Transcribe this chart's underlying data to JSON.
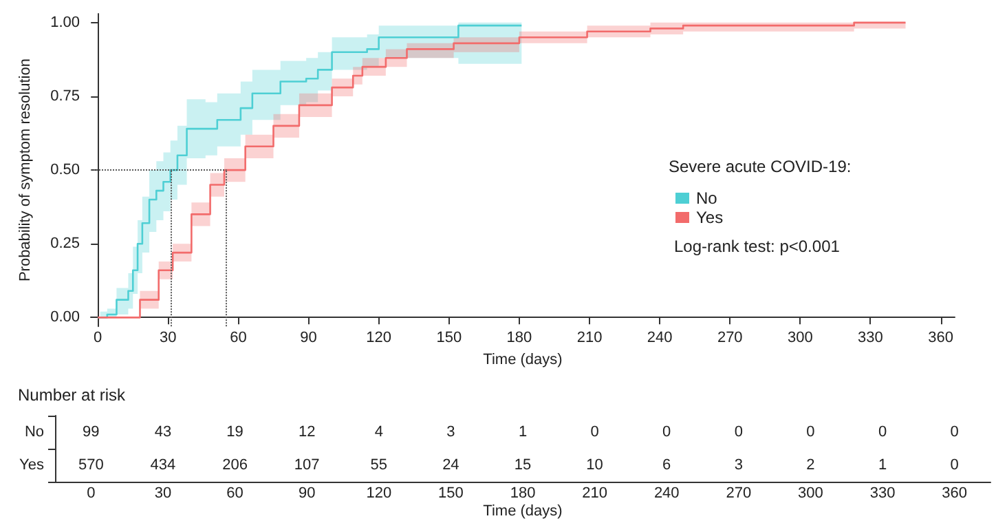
{
  "chart_data": [
    {
      "type": "step",
      "xlabel": "Time (days)",
      "ylabel": "Probability of symptom resolution",
      "legend_title": "Severe acute COVID-19:",
      "legend": "right",
      "grid": false,
      "marker": "none",
      "line_style": "solid",
      "xlim": [
        -3,
        366
      ],
      "xticks": [
        0,
        30,
        60,
        90,
        120,
        150,
        180,
        210,
        240,
        270,
        300,
        330,
        360
      ],
      "ylim": [
        -0.03,
        1.03
      ],
      "yticks": [
        {
          "value": 0,
          "label": "0.00"
        },
        {
          "value": 0.25,
          "label": "0.25"
        },
        {
          "value": 0.5,
          "label": "0.50"
        },
        {
          "value": 0.75,
          "label": "0.75"
        },
        {
          "value": 1,
          "label": "1.00"
        }
      ],
      "annotations": [
        "Log-rank test: p<0.001"
      ],
      "ref_lines": [
        {
          "axis": "y",
          "value": 0.5,
          "line_style": "dotted",
          "color": "#555555"
        },
        {
          "axis": "x",
          "value": 31,
          "line_style": "dotted",
          "color": "#555555"
        },
        {
          "axis": "x",
          "value": 55,
          "line_style": "dotted",
          "color": "#555555"
        }
      ],
      "series": [
        {
          "name": "No",
          "color": "#4ecfd4",
          "x": [
            0,
            1,
            4,
            8,
            13,
            15,
            17,
            19,
            22,
            25,
            28,
            31,
            34,
            38,
            46,
            51,
            61,
            66,
            78,
            89,
            94,
            100,
            115,
            120,
            154,
            181
          ],
          "values": [
            0,
            0,
            0.01,
            0.06,
            0.09,
            0.16,
            0.25,
            0.32,
            0.4,
            0.43,
            0.46,
            0.5,
            0.55,
            0.64,
            0.64,
            0.67,
            0.71,
            0.76,
            0.8,
            0.81,
            0.84,
            0.9,
            0.91,
            0.95,
            0.99,
            0.99
          ],
          "lower": [
            0,
            0,
            0,
            0.01,
            0.03,
            0.08,
            0.15,
            0.22,
            0.29,
            0.33,
            0.36,
            0.4,
            0.45,
            0.54,
            0.55,
            0.58,
            0.62,
            0.67,
            0.72,
            0.73,
            0.77,
            0.84,
            0.85,
            0.88,
            0.86,
            0.86
          ],
          "upper": [
            0,
            0.02,
            0.03,
            0.1,
            0.15,
            0.24,
            0.33,
            0.41,
            0.5,
            0.53,
            0.56,
            0.6,
            0.65,
            0.74,
            0.73,
            0.76,
            0.8,
            0.84,
            0.87,
            0.88,
            0.9,
            0.95,
            0.96,
            0.99,
            1,
            1
          ]
        },
        {
          "name": "Yes",
          "color": "#f26b6b",
          "x": [
            0,
            11,
            18,
            26,
            32,
            40,
            48,
            54,
            63,
            75,
            86,
            100,
            109,
            113,
            123,
            132,
            152,
            180,
            209,
            236,
            250,
            323,
            345
          ],
          "values": [
            0,
            0,
            0.06,
            0.16,
            0.22,
            0.35,
            0.45,
            0.5,
            0.58,
            0.65,
            0.72,
            0.78,
            0.82,
            0.85,
            0.88,
            0.91,
            0.93,
            0.95,
            0.97,
            0.98,
            0.99,
            1,
            1
          ],
          "lower": [
            0,
            0,
            0.03,
            0.13,
            0.19,
            0.31,
            0.41,
            0.46,
            0.54,
            0.61,
            0.68,
            0.75,
            0.79,
            0.82,
            0.85,
            0.88,
            0.9,
            0.93,
            0.95,
            0.96,
            0.97,
            0.98,
            0.98
          ],
          "upper": [
            0,
            0,
            0.09,
            0.19,
            0.25,
            0.39,
            0.49,
            0.54,
            0.62,
            0.69,
            0.76,
            0.81,
            0.85,
            0.88,
            0.91,
            0.93,
            0.95,
            0.97,
            0.99,
            1,
            1,
            1,
            1
          ]
        }
      ]
    },
    {
      "type": "heatmap",
      "title": "Number at risk",
      "xlabel": "Time (days)",
      "data_labels": true,
      "categories": [
        "0",
        "30",
        "60",
        "90",
        "120",
        "150",
        "180",
        "210",
        "240",
        "270",
        "300",
        "330",
        "360"
      ],
      "y_categories": [
        "No",
        "Yes"
      ],
      "cells": [
        [
          99,
          43,
          19,
          12,
          4,
          3,
          1,
          0,
          0,
          0,
          0,
          0,
          0
        ],
        [
          570,
          434,
          206,
          107,
          55,
          24,
          15,
          10,
          6,
          3,
          2,
          1,
          0
        ]
      ]
    }
  ]
}
